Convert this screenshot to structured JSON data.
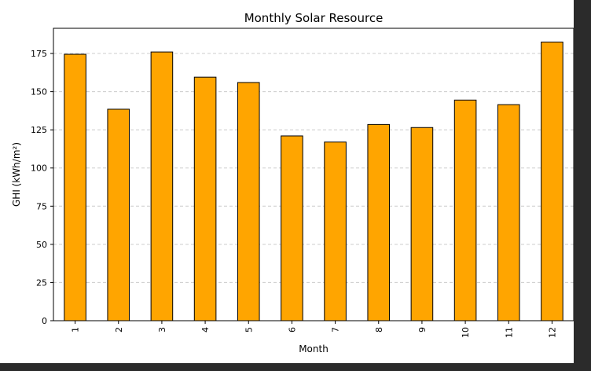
{
  "chart_data": {
    "type": "bar",
    "title": "Monthly Solar Resource",
    "xlabel": "Month",
    "ylabel": "GHI (kWh/m²)",
    "categories": [
      "1",
      "2",
      "3",
      "4",
      "5",
      "6",
      "7",
      "8",
      "9",
      "10",
      "11",
      "12"
    ],
    "values": [
      174.5,
      138.5,
      176,
      159.5,
      156,
      121,
      117,
      128.5,
      126.5,
      144.5,
      141.5,
      182.5
    ],
    "ylim": [
      0,
      191.5
    ],
    "yticks": [
      0,
      25,
      50,
      75,
      100,
      125,
      150,
      175
    ],
    "grid": "y-dashed",
    "bar_color": "#ffa500",
    "edge_color": "#000000",
    "background_color": "#ffffff",
    "page_color": "#2b2b2b",
    "grid_color": "#cccccc",
    "text_color": "#000000"
  }
}
